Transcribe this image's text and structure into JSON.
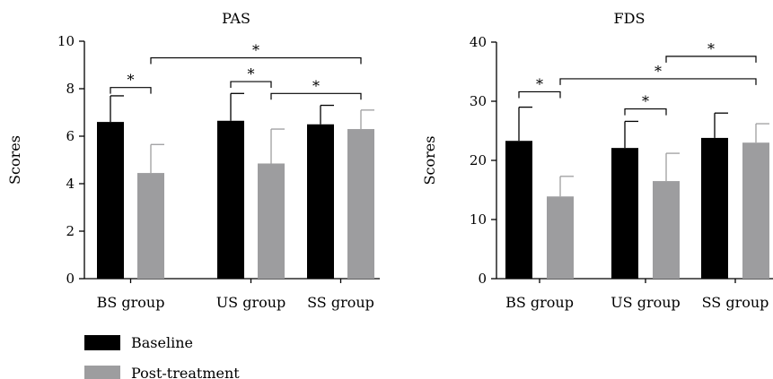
{
  "chart_data": [
    {
      "type": "bar",
      "title": "PAS",
      "xlabel": "",
      "ylabel": "Scores",
      "ylim": [
        0,
        10
      ],
      "yticks": [
        0,
        2,
        4,
        6,
        8,
        10
      ],
      "categories": [
        "BS group",
        "US group",
        "SS group"
      ],
      "series": [
        {
          "name": "Baseline",
          "color": "#000000",
          "values": [
            6.6,
            6.65,
            6.5
          ],
          "errors": [
            1.1,
            1.15,
            0.8
          ]
        },
        {
          "name": "Post-treatment",
          "color": "#9d9d9f",
          "values": [
            4.45,
            4.85,
            6.3
          ],
          "errors": [
            1.2,
            1.45,
            0.8
          ]
        }
      ],
      "significance": [
        {
          "from": [
            0,
            0
          ],
          "to": [
            0,
            1
          ],
          "y": 8.05,
          "label": "*"
        },
        {
          "from": [
            1,
            0
          ],
          "to": [
            1,
            1
          ],
          "y": 8.3,
          "label": "*"
        },
        {
          "from": [
            1,
            1
          ],
          "to": [
            2,
            1
          ],
          "y": 7.8,
          "label": "*"
        },
        {
          "from": [
            0,
            1
          ],
          "to": [
            2,
            1
          ],
          "y": 9.3,
          "label": "*"
        }
      ]
    },
    {
      "type": "bar",
      "title": "FDS",
      "xlabel": "",
      "ylabel": "Scores",
      "ylim": [
        0,
        40
      ],
      "yticks": [
        0,
        10,
        20,
        30,
        40
      ],
      "categories": [
        "BS group",
        "US group",
        "SS group"
      ],
      "series": [
        {
          "name": "Baseline",
          "color": "#000000",
          "values": [
            23.3,
            22.1,
            23.8
          ],
          "errors": [
            5.7,
            4.5,
            4.2
          ]
        },
        {
          "name": "Post-treatment",
          "color": "#9d9d9f",
          "values": [
            13.9,
            16.5,
            23.0
          ],
          "errors": [
            3.4,
            4.7,
            3.2
          ]
        }
      ],
      "significance": [
        {
          "from": [
            0,
            0
          ],
          "to": [
            0,
            1
          ],
          "y": 31.6,
          "label": "*"
        },
        {
          "from": [
            1,
            0
          ],
          "to": [
            1,
            1
          ],
          "y": 28.7,
          "label": "*"
        },
        {
          "from": [
            0,
            1
          ],
          "to": [
            2,
            1
          ],
          "y": 33.8,
          "label": "*"
        },
        {
          "from": [
            1,
            1
          ],
          "to": [
            2,
            1
          ],
          "y": 37.6,
          "label": "*"
        }
      ]
    }
  ],
  "legend": {
    "placement": "bottom-left",
    "items": [
      {
        "label": "Baseline",
        "color": "#000000"
      },
      {
        "label": "Post-treatment",
        "color": "#9d9d9f"
      }
    ]
  }
}
